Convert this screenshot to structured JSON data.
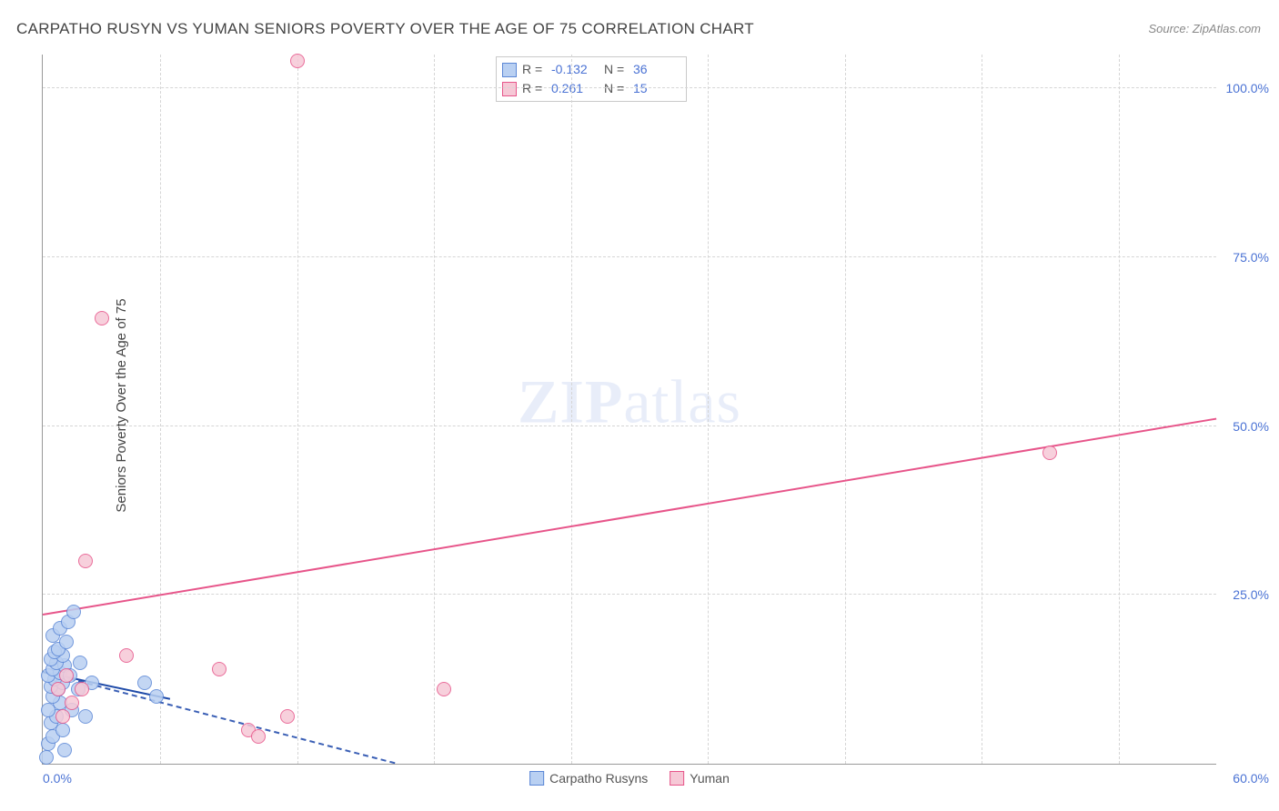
{
  "title": "CARPATHO RUSYN VS YUMAN SENIORS POVERTY OVER THE AGE OF 75 CORRELATION CHART",
  "source": "Source: ZipAtlas.com",
  "ylabel": "Seniors Poverty Over the Age of 75",
  "watermark_bold": "ZIP",
  "watermark_light": "atlas",
  "chart": {
    "type": "scatter",
    "xlim": [
      0,
      60
    ],
    "ylim": [
      0,
      105
    ],
    "background_color": "#ffffff",
    "grid_color": "#d5d5d5",
    "axis_color": "#999999",
    "tick_label_color": "#4a72d4",
    "tick_fontsize": 14,
    "xticks": [
      {
        "v": 0,
        "label": "0.0%",
        "pos": "left"
      },
      {
        "v": 60,
        "label": "60.0%",
        "pos": "right"
      }
    ],
    "yticks": [
      {
        "v": 25,
        "label": "25.0%"
      },
      {
        "v": 50,
        "label": "50.0%"
      },
      {
        "v": 75,
        "label": "75.0%"
      },
      {
        "v": 100,
        "label": "100.0%"
      }
    ],
    "x_gridlines": [
      6,
      13,
      20,
      27,
      34,
      41,
      48,
      55
    ],
    "marker_radius": 8,
    "marker_border_width": 1.4,
    "series": [
      {
        "name": "Carpatho Rusyns",
        "fill": "#b9d0f2",
        "stroke": "#5b87d6",
        "swatch_fill": "#b9d0f2",
        "swatch_stroke": "#5b87d6",
        "R": "-0.132",
        "N": "36",
        "trend": {
          "x1": 0,
          "y1": 13.5,
          "x2": 18,
          "y2": 0,
          "color": "#3a5fb5",
          "style": "dashed",
          "width": 2
        },
        "trend_solid_head": {
          "x1": 0,
          "y1": 13.5,
          "x2": 6.5,
          "y2": 9.5,
          "color": "#1e4aa8",
          "style": "solid",
          "width": 2.5
        },
        "points": [
          {
            "x": 0.2,
            "y": 1
          },
          {
            "x": 0.3,
            "y": 3
          },
          {
            "x": 0.5,
            "y": 4
          },
          {
            "x": 0.4,
            "y": 6
          },
          {
            "x": 0.7,
            "y": 7
          },
          {
            "x": 0.3,
            "y": 8
          },
          {
            "x": 0.9,
            "y": 9
          },
          {
            "x": 0.5,
            "y": 10
          },
          {
            "x": 0.8,
            "y": 11
          },
          {
            "x": 0.4,
            "y": 11.5
          },
          {
            "x": 1.0,
            "y": 12
          },
          {
            "x": 0.6,
            "y": 12.5
          },
          {
            "x": 0.3,
            "y": 13
          },
          {
            "x": 0.9,
            "y": 13.5
          },
          {
            "x": 0.5,
            "y": 14
          },
          {
            "x": 1.1,
            "y": 14.5
          },
          {
            "x": 0.7,
            "y": 15
          },
          {
            "x": 0.4,
            "y": 15.5
          },
          {
            "x": 1.0,
            "y": 16
          },
          {
            "x": 0.6,
            "y": 16.5
          },
          {
            "x": 0.8,
            "y": 17
          },
          {
            "x": 1.2,
            "y": 18
          },
          {
            "x": 0.5,
            "y": 19
          },
          {
            "x": 0.9,
            "y": 20
          },
          {
            "x": 1.3,
            "y": 21
          },
          {
            "x": 1.6,
            "y": 22.5
          },
          {
            "x": 1.0,
            "y": 5
          },
          {
            "x": 1.5,
            "y": 8
          },
          {
            "x": 1.8,
            "y": 11
          },
          {
            "x": 1.4,
            "y": 13
          },
          {
            "x": 1.9,
            "y": 15
          },
          {
            "x": 2.2,
            "y": 7
          },
          {
            "x": 2.5,
            "y": 12
          },
          {
            "x": 5.2,
            "y": 12
          },
          {
            "x": 5.8,
            "y": 10
          },
          {
            "x": 1.1,
            "y": 2
          }
        ]
      },
      {
        "name": "Yuman",
        "fill": "#f6c8d6",
        "stroke": "#e7558a",
        "swatch_fill": "#f6c8d6",
        "swatch_stroke": "#e7558a",
        "R": "0.261",
        "N": "15",
        "trend": {
          "x1": 0,
          "y1": 22,
          "x2": 60,
          "y2": 51,
          "color": "#e7558a",
          "style": "solid",
          "width": 2.5
        },
        "points": [
          {
            "x": 0.8,
            "y": 11
          },
          {
            "x": 1.2,
            "y": 13
          },
          {
            "x": 1.5,
            "y": 9
          },
          {
            "x": 2.0,
            "y": 11
          },
          {
            "x": 2.2,
            "y": 30
          },
          {
            "x": 3.0,
            "y": 66
          },
          {
            "x": 4.3,
            "y": 16
          },
          {
            "x": 9.0,
            "y": 14
          },
          {
            "x": 10.5,
            "y": 5
          },
          {
            "x": 11.0,
            "y": 4
          },
          {
            "x": 12.5,
            "y": 7
          },
          {
            "x": 13.0,
            "y": 104
          },
          {
            "x": 20.5,
            "y": 11
          },
          {
            "x": 51.5,
            "y": 46
          },
          {
            "x": 1.0,
            "y": 7
          }
        ]
      }
    ]
  },
  "legend": {
    "items": [
      {
        "label": "Carpatho Rusyns",
        "fill": "#b9d0f2",
        "stroke": "#5b87d6"
      },
      {
        "label": "Yuman",
        "fill": "#f6c8d6",
        "stroke": "#e7558a"
      }
    ]
  }
}
